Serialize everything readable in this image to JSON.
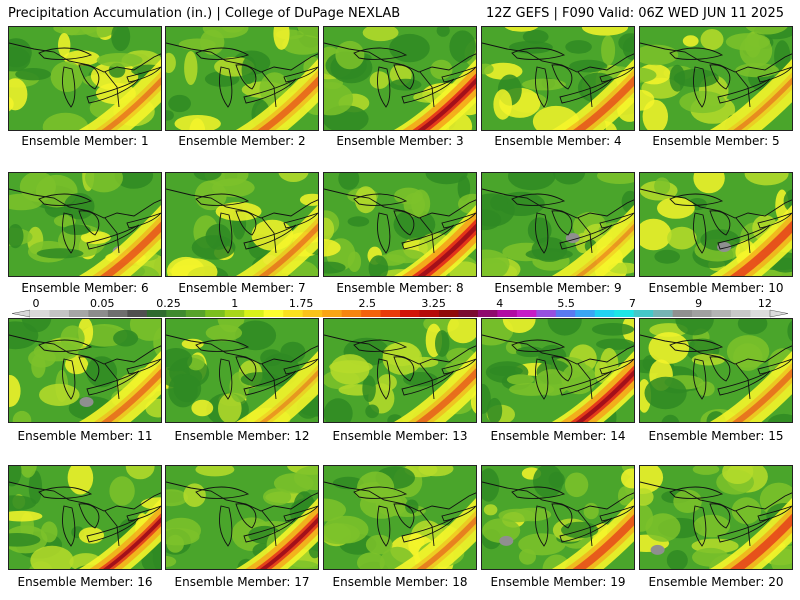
{
  "header": {
    "title_left": "Precipitation Accumulation (in.) | College of DuPage NEXLAB",
    "title_right": "12Z GEFS | F090 Valid: 06Z WED JUN 11 2025"
  },
  "caption_prefix": "Ensemble Member: ",
  "members": [
    {
      "id": 1,
      "label": "Ensemble Member: 1",
      "intensity": 0.45
    },
    {
      "id": 2,
      "label": "Ensemble Member: 2",
      "intensity": 0.55
    },
    {
      "id": 3,
      "label": "Ensemble Member: 3",
      "intensity": 0.85
    },
    {
      "id": 4,
      "label": "Ensemble Member: 4",
      "intensity": 0.6
    },
    {
      "id": 5,
      "label": "Ensemble Member: 5",
      "intensity": 0.4
    },
    {
      "id": 6,
      "label": "Ensemble Member: 6",
      "intensity": 0.6
    },
    {
      "id": 7,
      "label": "Ensemble Member: 7",
      "intensity": 0.45
    },
    {
      "id": 8,
      "label": "Ensemble Member: 8",
      "intensity": 0.9
    },
    {
      "id": 9,
      "label": "Ensemble Member: 9",
      "intensity": 0.35
    },
    {
      "id": 10,
      "label": "Ensemble Member: 10",
      "intensity": 0.7
    },
    {
      "id": 11,
      "label": "Ensemble Member: 11",
      "intensity": 0.5
    },
    {
      "id": 12,
      "label": "Ensemble Member: 12",
      "intensity": 0.35
    },
    {
      "id": 13,
      "label": "Ensemble Member: 13",
      "intensity": 0.55
    },
    {
      "id": 14,
      "label": "Ensemble Member: 14",
      "intensity": 0.85
    },
    {
      "id": 15,
      "label": "Ensemble Member: 15",
      "intensity": 0.5
    },
    {
      "id": 16,
      "label": "Ensemble Member: 16",
      "intensity": 0.75
    },
    {
      "id": 17,
      "label": "Ensemble Member: 17",
      "intensity": 0.8
    },
    {
      "id": 18,
      "label": "Ensemble Member: 18",
      "intensity": 0.45
    },
    {
      "id": 19,
      "label": "Ensemble Member: 19",
      "intensity": 0.65
    },
    {
      "id": 20,
      "label": "Ensemble Member: 20",
      "intensity": 0.7
    }
  ],
  "colorbar": {
    "labels": [
      "0",
      "0.05",
      "0.25",
      "1",
      "1.75",
      "2.5",
      "3.25",
      "4",
      "5.5",
      "7",
      "9",
      "12"
    ],
    "colors": [
      "#d9d9d9",
      "#c4c4c4",
      "#a6a6a6",
      "#8c8c8c",
      "#6e6e6e",
      "#4f4f4f",
      "#2f6b2f",
      "#3f8a2f",
      "#57a22a",
      "#7bbf1e",
      "#a8d61a",
      "#d9f21a",
      "#fdfd30",
      "#fbe11f",
      "#fbc31a",
      "#f9a514",
      "#f7850f",
      "#f4620c",
      "#ea3b0a",
      "#d21408",
      "#b50a0a",
      "#900a0a",
      "#7a0a30",
      "#8e0a6e",
      "#b10aa3",
      "#c61cc6",
      "#9650e0",
      "#5a7af0",
      "#3aa6f5",
      "#22d2f2",
      "#1ee6e6",
      "#45c8c8",
      "#76b4b4",
      "#909090",
      "#a0a0a0",
      "#b4b4b4",
      "#c8c8c8",
      "#dcdcdc"
    ]
  },
  "palette": {
    "dark_green": "#2f8a23",
    "green": "#4aa52b",
    "light_green": "#7cc22a",
    "yellow_green": "#b6dc2a",
    "yellow": "#f5f52a",
    "orange": "#f4a21a",
    "red": "#e2271a",
    "dark_red": "#a3101a",
    "gray": "#8f8f8f"
  }
}
